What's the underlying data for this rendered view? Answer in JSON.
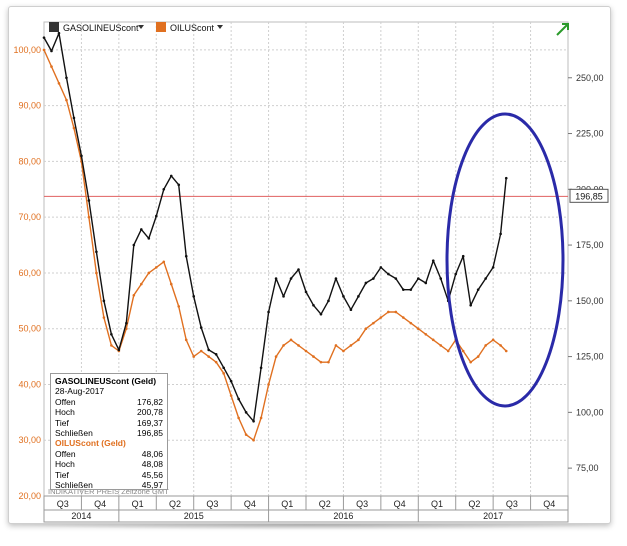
{
  "colors": {
    "gasoline": "#111111",
    "oil": "#e07020",
    "circle": "#2a2aa8",
    "hline": "#e06060",
    "grid": "#cfcfcf",
    "axis_left": "#e07020",
    "axis_right": "#333333"
  },
  "icons": {
    "legend_menu": "triangle-down-icon",
    "trend": "green-arrow-icon"
  },
  "legend": {
    "gasoline": "GASOLINEUScont",
    "oil": "OILUScont"
  },
  "footer": {
    "text": "INDIKATIVER PREIS    Zeitzone GMT"
  },
  "price_tag": "196,85",
  "info_panel": {
    "g_title": "GASOLINEUScont (Geld)",
    "date": "28-Aug-2017",
    "g_rows": [
      {
        "label": "Offen",
        "value": "176,82"
      },
      {
        "label": "Hoch",
        "value": "200,78"
      },
      {
        "label": "Tief",
        "value": "169,37"
      },
      {
        "label": "Schließen",
        "value": "196,85"
      }
    ],
    "o_title": "OILUScont (Geld)",
    "o_rows": [
      {
        "label": "Offen",
        "value": "48,06"
      },
      {
        "label": "Hoch",
        "value": "48,08"
      },
      {
        "label": "Tief",
        "value": "45,56"
      },
      {
        "label": "Schließen",
        "value": "45,97"
      }
    ]
  },
  "chart_data": {
    "type": "line",
    "x_unit": "quarter index (0 = Q3 2014)",
    "quarters": [
      "Q3",
      "Q4",
      "Q1",
      "Q2",
      "Q3",
      "Q4",
      "Q1",
      "Q2",
      "Q3",
      "Q4",
      "Q1",
      "Q2",
      "Q3",
      "Q4"
    ],
    "years": [
      {
        "label": "2014",
        "from": 0,
        "to": 2
      },
      {
        "label": "2015",
        "from": 2,
        "to": 6
      },
      {
        "label": "2016",
        "from": 6,
        "to": 10
      },
      {
        "label": "2017",
        "from": 10,
        "to": 14
      }
    ],
    "left_axis": {
      "ylim": [
        20,
        105
      ],
      "ticks": [
        "20,00",
        "30,00",
        "40,00",
        "50,00",
        "60,00",
        "70,00",
        "80,00",
        "90,00",
        "100,00"
      ],
      "tick_values": [
        20,
        30,
        40,
        50,
        60,
        70,
        80,
        90,
        100
      ]
    },
    "right_axis": {
      "ylim": [
        62.5,
        275
      ],
      "ticks": [
        "75,00",
        "100,00",
        "125,00",
        "150,00",
        "175,00",
        "200,00",
        "225,00",
        "250,00"
      ],
      "tick_values": [
        75,
        100,
        125,
        150,
        175,
        200,
        225,
        250
      ]
    },
    "reference_line": {
      "value": 196.85,
      "axis": "right"
    },
    "series": [
      {
        "name": "GASOLINEUScont",
        "axis": "right",
        "x": [
          0,
          0.2,
          0.4,
          0.6,
          0.8,
          1.0,
          1.2,
          1.4,
          1.6,
          1.8,
          2.0,
          2.2,
          2.4,
          2.6,
          2.8,
          3.0,
          3.2,
          3.4,
          3.6,
          3.8,
          4.0,
          4.2,
          4.4,
          4.6,
          4.8,
          5.0,
          5.2,
          5.4,
          5.6,
          5.8,
          6.0,
          6.2,
          6.4,
          6.6,
          6.8,
          7.0,
          7.2,
          7.4,
          7.6,
          7.8,
          8.0,
          8.2,
          8.4,
          8.6,
          8.8,
          9.0,
          9.2,
          9.4,
          9.6,
          9.8,
          10.0,
          10.2,
          10.4,
          10.6,
          10.8,
          11.0,
          11.2,
          11.4,
          11.6,
          11.8,
          12.0,
          12.2,
          12.35
        ],
        "values": [
          268,
          262,
          270,
          250,
          232,
          215,
          195,
          172,
          150,
          135,
          128,
          140,
          175,
          182,
          178,
          188,
          200,
          206,
          202,
          170,
          152,
          138,
          128,
          126,
          120,
          114,
          106,
          100,
          96,
          120,
          145,
          160,
          152,
          160,
          164,
          154,
          148,
          144,
          150,
          160,
          152,
          146,
          152,
          158,
          160,
          165,
          162,
          160,
          155,
          155,
          160,
          158,
          168,
          160,
          150,
          162,
          170,
          148,
          155,
          160,
          165,
          180,
          205
        ]
      },
      {
        "name": "OILUScont",
        "axis": "left",
        "x": [
          0,
          0.2,
          0.4,
          0.6,
          0.8,
          1.0,
          1.2,
          1.4,
          1.6,
          1.8,
          2.0,
          2.2,
          2.4,
          2.6,
          2.8,
          3.0,
          3.2,
          3.4,
          3.6,
          3.8,
          4.0,
          4.2,
          4.4,
          4.6,
          4.8,
          5.0,
          5.2,
          5.4,
          5.6,
          5.8,
          6.0,
          6.2,
          6.4,
          6.6,
          6.8,
          7.0,
          7.2,
          7.4,
          7.6,
          7.8,
          8.0,
          8.2,
          8.4,
          8.6,
          8.8,
          9.0,
          9.2,
          9.4,
          9.6,
          9.8,
          10.0,
          10.2,
          10.4,
          10.6,
          10.8,
          11.0,
          11.2,
          11.4,
          11.6,
          11.8,
          12.0,
          12.2,
          12.35
        ],
        "values": [
          100,
          97,
          94,
          91,
          86,
          80,
          70,
          60,
          52,
          47,
          46,
          50,
          56,
          58,
          60,
          61,
          62,
          58,
          54,
          48,
          45,
          46,
          45,
          44,
          42,
          38,
          34,
          31,
          30,
          34,
          40,
          45,
          47,
          48,
          47,
          46,
          45,
          44,
          44,
          47,
          46,
          47,
          48,
          50,
          51,
          52,
          53,
          53,
          52,
          51,
          50,
          49,
          48,
          47,
          46,
          48,
          46,
          44,
          45,
          47,
          48,
          47,
          46
        ]
      }
    ]
  }
}
